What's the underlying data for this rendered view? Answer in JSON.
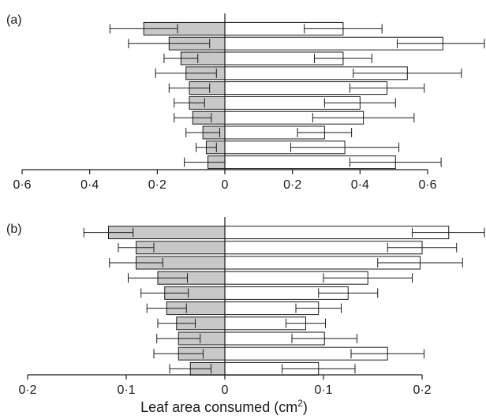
{
  "chart_data": [
    {
      "type": "bar",
      "panel_label": "(a)",
      "orientation": "horizontal-diverging",
      "tick_labels": [
        "0·6",
        "0·4",
        "0·2",
        "0",
        "0·2",
        "0·4",
        "0·6"
      ],
      "xlim": [
        -0.6,
        0.6
      ],
      "series": [
        {
          "fill": "#c8c8c8",
          "values": [
            0.24,
            0.165,
            0.13,
            0.115,
            0.105,
            0.105,
            0.095,
            0.065,
            0.055,
            0.05
          ],
          "errors": [
            0.1,
            0.12,
            0.05,
            0.09,
            0.06,
            0.045,
            0.055,
            0.05,
            0.03,
            0.07
          ]
        },
        {
          "fill": "#ffffff",
          "values": [
            0.35,
            0.645,
            0.35,
            0.54,
            0.48,
            0.4,
            0.41,
            0.295,
            0.355,
            0.505
          ],
          "errors": [
            0.115,
            0.135,
            0.085,
            0.16,
            0.11,
            0.105,
            0.15,
            0.08,
            0.16,
            0.135
          ]
        }
      ]
    },
    {
      "type": "bar",
      "panel_label": "(b)",
      "orientation": "horizontal-diverging",
      "tick_labels": [
        "0·2",
        "0·1",
        "0",
        "0·1",
        "0·2"
      ],
      "xlim": [
        -0.2,
        0.2
      ],
      "series": [
        {
          "fill": "#c8c8c8",
          "values": [
            0.118,
            0.09,
            0.09,
            0.068,
            0.061,
            0.059,
            0.049,
            0.047,
            0.047,
            0.035
          ],
          "errors": [
            0.025,
            0.018,
            0.027,
            0.03,
            0.024,
            0.02,
            0.019,
            0.022,
            0.025,
            0.021
          ]
        },
        {
          "fill": "#ffffff",
          "values": [
            0.227,
            0.2,
            0.198,
            0.145,
            0.125,
            0.095,
            0.082,
            0.101,
            0.165,
            0.095
          ],
          "errors": [
            0.037,
            0.035,
            0.043,
            0.045,
            0.03,
            0.023,
            0.02,
            0.033,
            0.037,
            0.037
          ]
        }
      ]
    }
  ],
  "xlabel_text": "Leaf area consumed (cm",
  "xlabel_superscript": "2",
  "xlabel_close": ")"
}
